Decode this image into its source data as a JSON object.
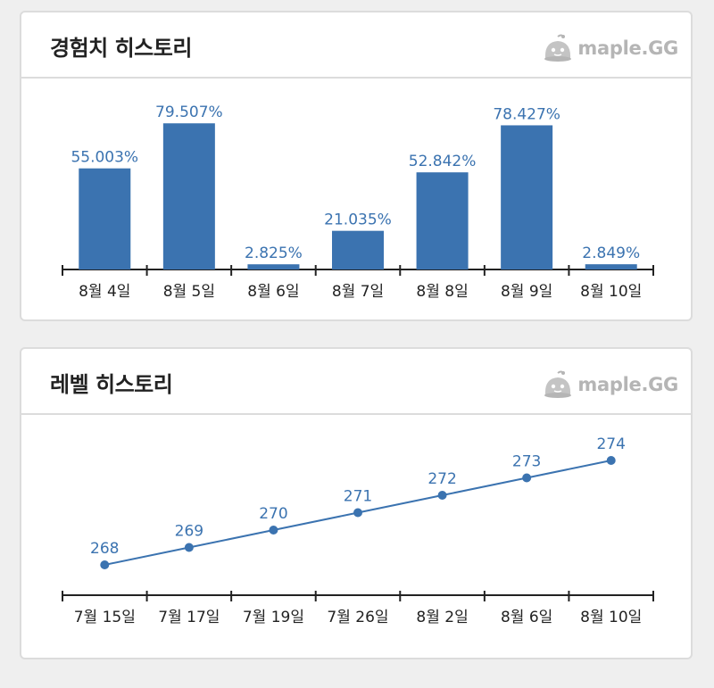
{
  "exp_card": {
    "title": "경험치 히스토리",
    "brand": "maple.GG"
  },
  "level_card": {
    "title": "레벨 히스토리",
    "brand": "maple.GG"
  },
  "colors": {
    "bar": "#3b73b0",
    "line": "#3b73b0",
    "data_label": "#3b73b0",
    "axis": "#222222",
    "tick_label": "#222222",
    "brand": "#b5b5b5"
  },
  "icons": {
    "brand_logo": "slime-mascot-icon"
  },
  "chart_data": [
    {
      "type": "bar",
      "title": "경험치 히스토리",
      "categories": [
        "8월 4일",
        "8월 5일",
        "8월 6일",
        "8월 7일",
        "8월 8일",
        "8월 9일",
        "8월 10일"
      ],
      "values": [
        55.003,
        79.507,
        2.825,
        21.035,
        52.842,
        78.427,
        2.849
      ],
      "labels": [
        "55.003%",
        "79.507%",
        "2.825%",
        "21.035%",
        "52.842%",
        "78.427%",
        "2.849%"
      ],
      "unit": "%",
      "ylim": [
        0,
        100
      ],
      "xlabel": "",
      "ylabel": "",
      "grid": false
    },
    {
      "type": "line",
      "title": "레벨 히스토리",
      "categories": [
        "7월 15일",
        "7월 17일",
        "7월 19일",
        "7월 26일",
        "8월 2일",
        "8월 6일",
        "8월 10일"
      ],
      "values": [
        268,
        269,
        270,
        271,
        272,
        273,
        274
      ],
      "labels": [
        "268",
        "269",
        "270",
        "271",
        "272",
        "273",
        "274"
      ],
      "ylim": [
        267,
        275
      ],
      "xlabel": "",
      "ylabel": "",
      "grid": false
    }
  ]
}
